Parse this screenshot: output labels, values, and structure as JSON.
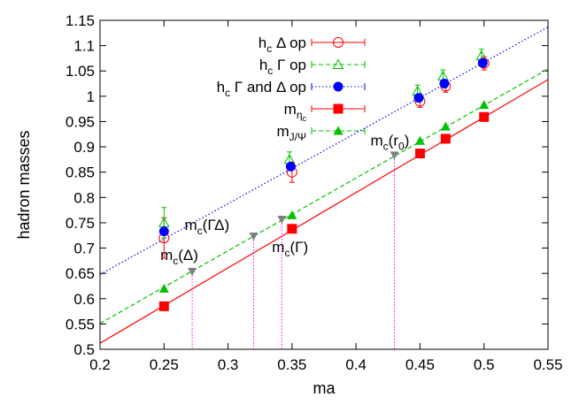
{
  "chart_data": {
    "type": "scatter",
    "title": "",
    "xlabel": "ma",
    "ylabel": "hadron masses",
    "xlim": [
      0.2,
      0.55
    ],
    "ylim": [
      0.5,
      1.15
    ],
    "xticks": [
      0.2,
      0.25,
      0.3,
      0.35,
      0.4,
      0.45,
      0.5,
      0.55
    ],
    "xtick_labels": [
      "0.2",
      "0.25",
      "0.3",
      "0.35",
      "0.4",
      "0.45",
      "0.5",
      "0.55"
    ],
    "yticks": [
      0.5,
      0.55,
      0.6,
      0.65,
      0.7,
      0.75,
      0.8,
      0.85,
      0.9,
      0.95,
      1.0,
      1.05,
      1.1,
      1.15
    ],
    "ytick_labels": [
      "0.5",
      "0.55",
      "0.6",
      "0.65",
      "0.7",
      "0.75",
      "0.8",
      "0.85",
      "0.9",
      "0.95",
      "1",
      "1.05",
      "1.1",
      "1.15"
    ],
    "legend_position": "top-center",
    "legend": [
      {
        "base": "h",
        "sub": "c",
        "text": " Δ op"
      },
      {
        "base": "h",
        "sub": "c",
        "text": " Γ op"
      },
      {
        "base": "h",
        "sub": "c",
        "text": " Γ and Δ op"
      },
      {
        "base": "m",
        "sub": "η",
        "subsub": "c",
        "text": ""
      },
      {
        "base": "m",
        "sub": "J/Ψ",
        "text": ""
      }
    ],
    "series": [
      {
        "name": "hc Δ op",
        "color": "#ff0000",
        "marker": "open-circle",
        "x": [
          0.25,
          0.35,
          0.45,
          0.47,
          0.5
        ],
        "y": [
          0.72,
          0.85,
          0.99,
          1.02,
          1.065
        ],
        "err": [
          0.04,
          0.02,
          0.012,
          0.012,
          0.013
        ]
      },
      {
        "name": "hc Γ op",
        "color": "#00c000",
        "marker": "open-triangle",
        "x": [
          0.25,
          0.348,
          0.448,
          0.468,
          0.498
        ],
        "y": [
          0.75,
          0.875,
          1.01,
          1.04,
          1.08
        ],
        "err": [
          0.03,
          0.015,
          0.012,
          0.012,
          0.013
        ]
      },
      {
        "name": "hc Γ and Δ op",
        "color": "#0000ff",
        "marker": "filled-circle",
        "x": [
          0.25,
          0.349,
          0.449,
          0.469,
          0.499
        ],
        "y": [
          0.733,
          0.861,
          0.997,
          1.025,
          1.066
        ],
        "err": [
          0.0,
          0.0,
          0.0,
          0.0,
          0.0
        ]
      },
      {
        "name": "m eta_c",
        "color": "#ff0000",
        "marker": "filled-square",
        "x": [
          0.25,
          0.35,
          0.45,
          0.47,
          0.5
        ],
        "y": [
          0.585,
          0.738,
          0.887,
          0.916,
          0.959
        ]
      },
      {
        "name": "m J/Psi",
        "color": "#00c000",
        "marker": "filled-triangle",
        "x": [
          0.25,
          0.35,
          0.45,
          0.47,
          0.5
        ],
        "y": [
          0.62,
          0.765,
          0.912,
          0.94,
          0.983
        ]
      }
    ],
    "fit_lines": [
      {
        "name": "blue fit",
        "color": "#0000ff",
        "style": "dotted",
        "x": [
          0.2,
          0.55
        ],
        "y": [
          0.648,
          1.137
        ]
      },
      {
        "name": "green fit",
        "color": "#00c000",
        "style": "dashed",
        "x": [
          0.2,
          0.55
        ],
        "y": [
          0.551,
          1.054
        ]
      },
      {
        "name": "red fit",
        "color": "#ff0000",
        "style": "solid",
        "x": [
          0.2,
          0.55
        ],
        "y": [
          0.512,
          1.033
        ]
      }
    ],
    "reference_points": [
      {
        "label": "m",
        "sub": "c",
        "paren": "(Δ)",
        "x": 0.272,
        "y": 0.652
      },
      {
        "label": "m",
        "sub": "c",
        "paren": "(ΓΔ)",
        "x": 0.32,
        "y": 0.722
      },
      {
        "label": "m",
        "sub": "c",
        "paren": "(Γ)",
        "x": 0.342,
        "y": 0.755
      },
      {
        "label": "m",
        "sub": "c",
        "paren": "(r",
        "sub2": "0",
        "paren_end": ")",
        "x": 0.43,
        "y": 0.882
      }
    ]
  }
}
